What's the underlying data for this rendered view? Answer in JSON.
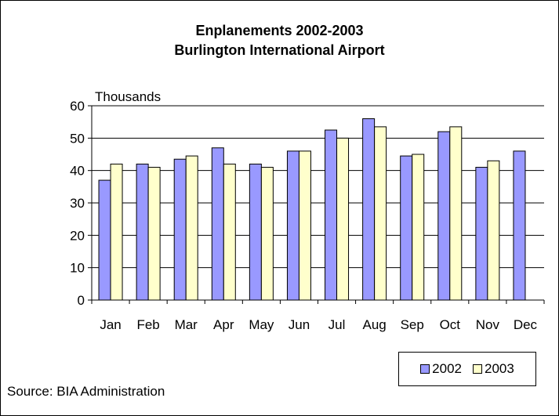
{
  "chart_data": {
    "type": "bar",
    "title": "Enplanements 2002-2003",
    "subtitle": "Burlington International Airport",
    "ylabel": "Thousands",
    "xlabel": "",
    "ylim": [
      0,
      60
    ],
    "yticks": [
      0,
      10,
      20,
      30,
      40,
      50,
      60
    ],
    "grid": true,
    "legend_position": "bottom-right",
    "categories": [
      "Jan",
      "Feb",
      "Mar",
      "Apr",
      "May",
      "Jun",
      "Jul",
      "Aug",
      "Sep",
      "Oct",
      "Nov",
      "Dec"
    ],
    "series": [
      {
        "name": "2002",
        "color": "#9999ff",
        "values": [
          37,
          42,
          43.5,
          47,
          42,
          46,
          52.5,
          56,
          44.5,
          52,
          41,
          46
        ]
      },
      {
        "name": "2003",
        "color": "#ffffcc",
        "values": [
          42,
          41,
          44.5,
          42,
          41,
          46,
          50,
          53.5,
          45,
          53.5,
          43,
          null
        ]
      }
    ],
    "source": "Source: BIA Administration"
  }
}
